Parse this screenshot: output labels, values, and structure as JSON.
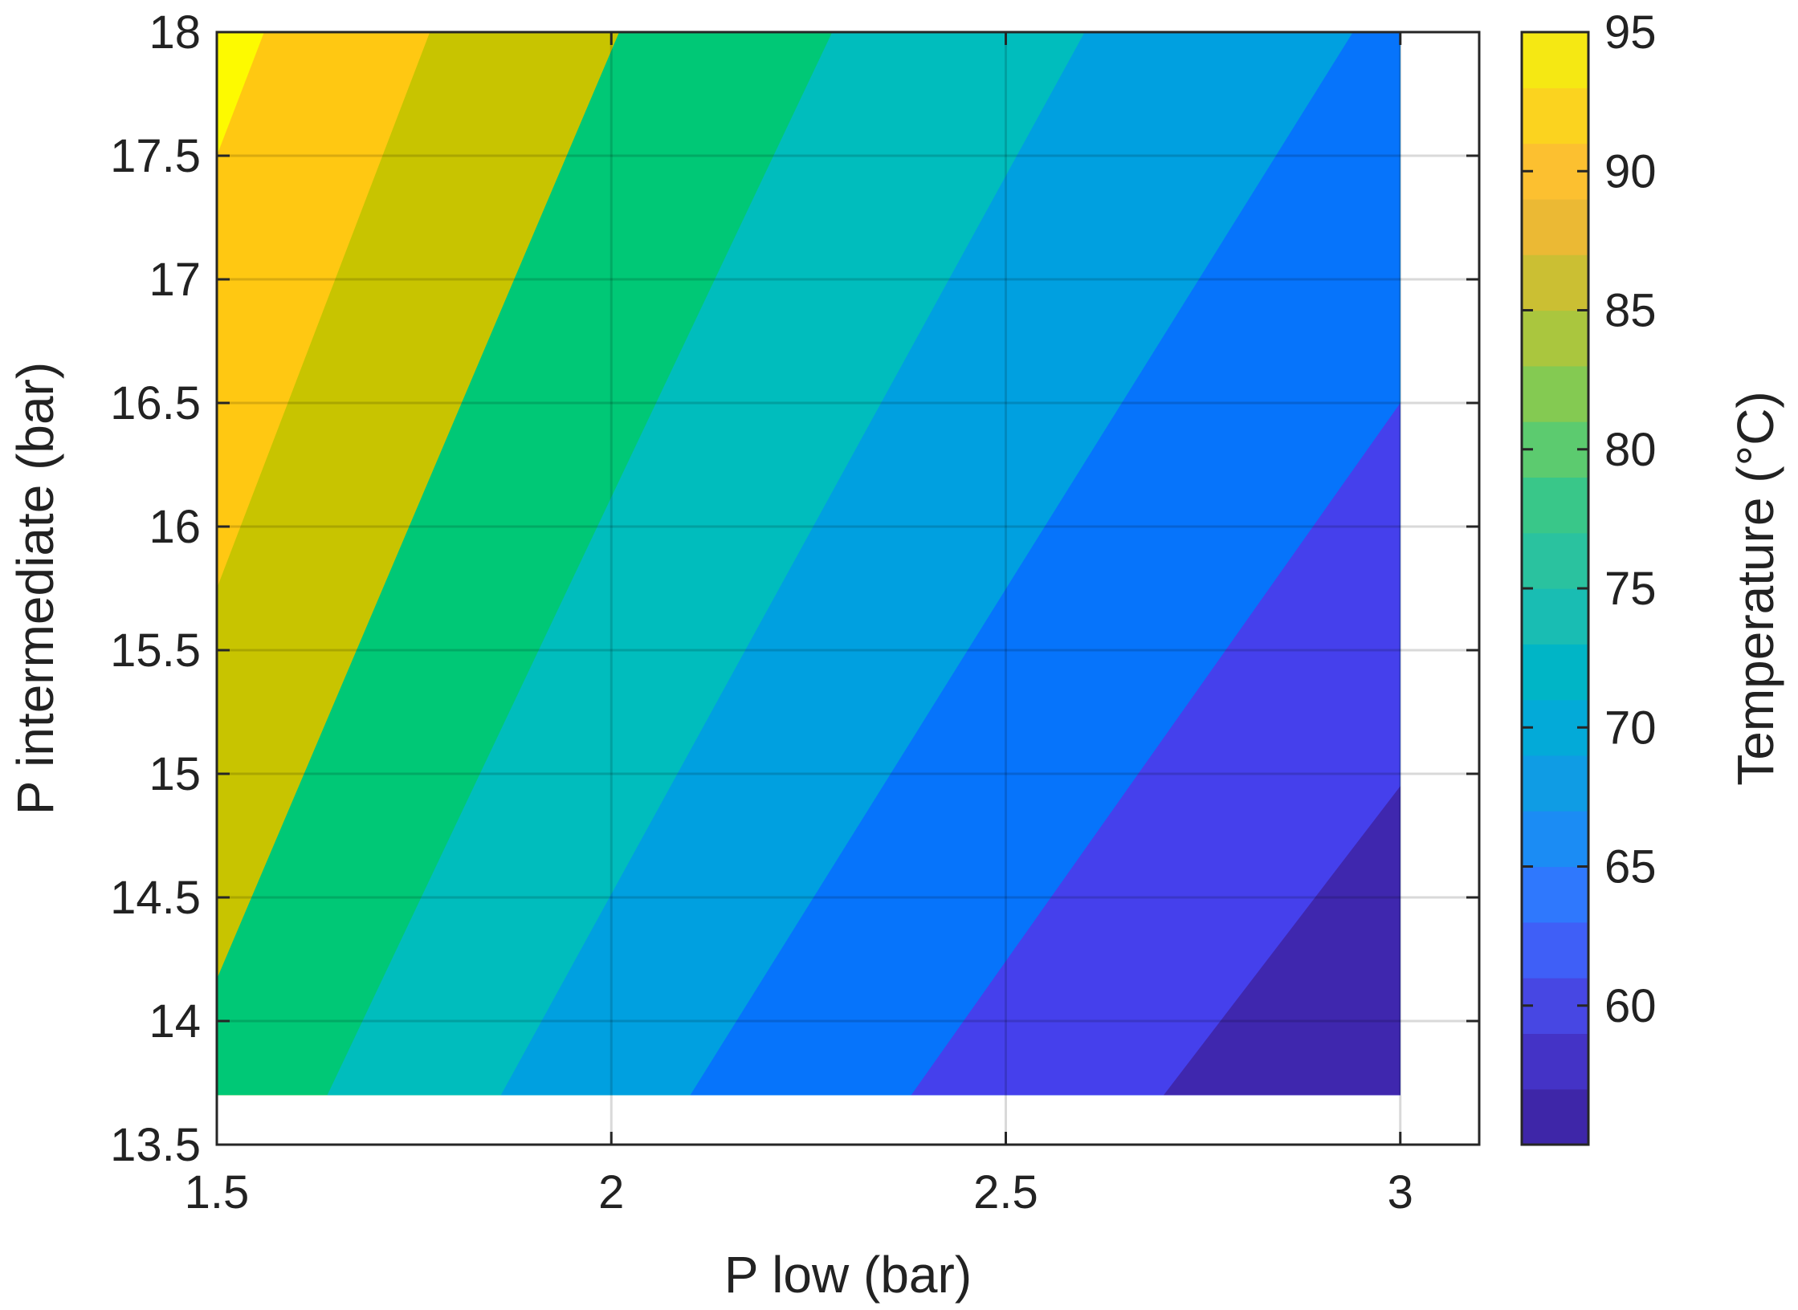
{
  "chart_data": {
    "type": "heatmap",
    "subtype": "filled-contour",
    "xlabel": "P low (bar)",
    "ylabel": "P intermediate (bar)",
    "colorbar_label": "Temperature (°C)",
    "xlim": [
      1.5,
      3.1
    ],
    "ylim": [
      13.5,
      18
    ],
    "data_x_range": [
      1.5,
      3.0
    ],
    "data_y_range": [
      13.7,
      18
    ],
    "x_ticks": [
      "1.5",
      "2",
      "2.5",
      "3"
    ],
    "y_ticks": [
      "13.5",
      "14",
      "14.5",
      "15",
      "15.5",
      "16",
      "16.5",
      "17",
      "17.5",
      "18"
    ],
    "colorbar_ticks": [
      "60",
      "65",
      "70",
      "75",
      "80",
      "85",
      "90",
      "95"
    ],
    "colorbar_range": [
      55,
      95
    ],
    "grid": true,
    "colormap": "parula",
    "contour_levels": [
      {
        "range": [
          55,
          60
        ],
        "color": "#3f27ae"
      },
      {
        "range": [
          60,
          65
        ],
        "color": "#4540ec"
      },
      {
        "range": [
          65,
          70
        ],
        "color": "#0674fb"
      },
      {
        "range": [
          70,
          75
        ],
        "color": "#00a0e0"
      },
      {
        "range": [
          75,
          80
        ],
        "color": "#00bdbd"
      },
      {
        "range": [
          80,
          85
        ],
        "color": "#00c876"
      },
      {
        "range": [
          85,
          90
        ],
        "color": "#c8c400"
      },
      {
        "range": [
          90,
          95
        ],
        "color": "#ffc812"
      },
      {
        "range": [
          95,
          100
        ],
        "color": "#fdfa00"
      }
    ],
    "contour_boundaries": [
      {
        "level": 95,
        "points": [
          [
            1.5,
            17.5
          ],
          [
            1.56,
            18
          ]
        ]
      },
      {
        "level": 90,
        "points": [
          [
            1.5,
            15.75
          ],
          [
            1.77,
            18
          ]
        ]
      },
      {
        "level": 85,
        "points": [
          [
            1.5,
            14.17
          ],
          [
            2.01,
            18
          ]
        ]
      },
      {
        "level": 80,
        "points": [
          [
            1.64,
            13.7
          ],
          [
            2.28,
            18
          ]
        ]
      },
      {
        "level": 75,
        "points": [
          [
            1.86,
            13.7
          ],
          [
            2.6,
            18
          ]
        ]
      },
      {
        "level": 70,
        "points": [
          [
            2.1,
            13.7
          ],
          [
            2.94,
            18
          ]
        ]
      },
      {
        "level": 65,
        "points": [
          [
            2.38,
            13.7
          ],
          [
            3.0,
            16.5
          ]
        ]
      },
      {
        "level": 60,
        "points": [
          [
            2.7,
            13.7
          ],
          [
            3.0,
            14.95
          ]
        ]
      }
    ]
  }
}
